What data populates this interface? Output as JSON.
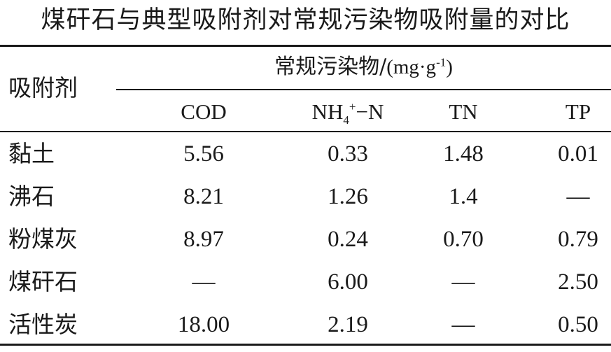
{
  "title": "煤矸石与典型吸附剂对常规污染物吸附量的对比",
  "table": {
    "row_header": "吸附剂",
    "group_header": {
      "label": "常规污染物/",
      "unit_open": "(mg·g",
      "unit_exp": "-1",
      "unit_close": ")"
    },
    "columns": [
      {
        "label": "COD"
      },
      {
        "label_main": "NH",
        "label_sub": "4",
        "label_sup": "+",
        "label_tail": "−N"
      },
      {
        "label": "TN"
      },
      {
        "label": "TP"
      }
    ],
    "rows": [
      {
        "name": "黏土",
        "values": [
          "5.56",
          "0.33",
          "1.48",
          "0.01"
        ]
      },
      {
        "name": "沸石",
        "values": [
          "8.21",
          "1.26",
          "1.4",
          "—"
        ]
      },
      {
        "name": "粉煤灰",
        "values": [
          "8.97",
          "0.24",
          "0.70",
          "0.79"
        ]
      },
      {
        "name": "煤矸石",
        "values": [
          "—",
          "6.00",
          "—",
          "2.50"
        ]
      },
      {
        "name": "活性炭",
        "values": [
          "18.00",
          "2.19",
          "—",
          "0.50"
        ]
      }
    ]
  }
}
